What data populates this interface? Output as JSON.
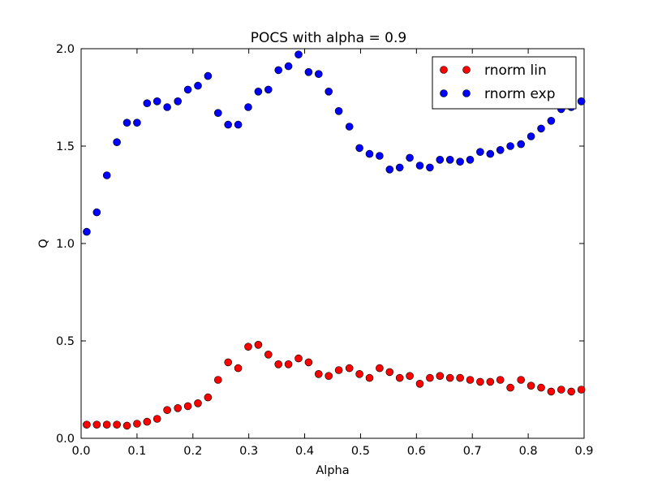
{
  "chart_data": {
    "type": "scatter",
    "title": "POCS with alpha = 0.9",
    "xlabel": "Alpha",
    "ylabel": "Q",
    "xlim": [
      0.0,
      0.9
    ],
    "ylim": [
      0.0,
      2.0
    ],
    "xticks": [
      "0.0",
      "0.1",
      "0.2",
      "0.3",
      "0.4",
      "0.5",
      "0.6",
      "0.7",
      "0.8",
      "0.9"
    ],
    "yticks": [
      "0.0",
      "0.5",
      "1.0",
      "1.5",
      "2.0"
    ],
    "grid": false,
    "legend_position": "top-right",
    "series": [
      {
        "name": "rnorm lin",
        "color": "#ff0000",
        "x": [
          0.01,
          0.028,
          0.046,
          0.064,
          0.082,
          0.1,
          0.118,
          0.136,
          0.154,
          0.173,
          0.191,
          0.209,
          0.227,
          0.245,
          0.263,
          0.281,
          0.299,
          0.317,
          0.335,
          0.353,
          0.371,
          0.389,
          0.407,
          0.425,
          0.443,
          0.461,
          0.48,
          0.498,
          0.516,
          0.534,
          0.552,
          0.57,
          0.588,
          0.606,
          0.624,
          0.642,
          0.66,
          0.678,
          0.696,
          0.714,
          0.732,
          0.75,
          0.768,
          0.787,
          0.805,
          0.823,
          0.841,
          0.859,
          0.877,
          0.895
        ],
        "y": [
          0.07,
          0.07,
          0.07,
          0.07,
          0.065,
          0.075,
          0.085,
          0.1,
          0.145,
          0.155,
          0.165,
          0.18,
          0.21,
          0.3,
          0.39,
          0.36,
          0.47,
          0.48,
          0.43,
          0.38,
          0.38,
          0.41,
          0.39,
          0.33,
          0.32,
          0.35,
          0.36,
          0.33,
          0.31,
          0.36,
          0.34,
          0.31,
          0.32,
          0.28,
          0.31,
          0.32,
          0.31,
          0.31,
          0.3,
          0.29,
          0.29,
          0.3,
          0.26,
          0.3,
          0.27,
          0.26,
          0.24,
          0.25,
          0.24,
          0.25
        ]
      },
      {
        "name": "rnorm exp",
        "color": "#0000ff",
        "x": [
          0.01,
          0.028,
          0.046,
          0.064,
          0.082,
          0.1,
          0.118,
          0.136,
          0.154,
          0.173,
          0.191,
          0.209,
          0.227,
          0.245,
          0.263,
          0.281,
          0.299,
          0.317,
          0.335,
          0.353,
          0.371,
          0.389,
          0.407,
          0.425,
          0.443,
          0.461,
          0.48,
          0.498,
          0.516,
          0.534,
          0.552,
          0.57,
          0.588,
          0.606,
          0.624,
          0.642,
          0.66,
          0.678,
          0.696,
          0.714,
          0.732,
          0.75,
          0.768,
          0.787,
          0.805,
          0.823,
          0.841,
          0.859,
          0.877,
          0.895
        ],
        "y": [
          1.06,
          1.16,
          1.35,
          1.52,
          1.62,
          1.62,
          1.72,
          1.73,
          1.7,
          1.73,
          1.79,
          1.81,
          1.86,
          1.67,
          1.61,
          1.61,
          1.7,
          1.78,
          1.79,
          1.89,
          1.91,
          1.97,
          1.88,
          1.87,
          1.78,
          1.68,
          1.6,
          1.49,
          1.46,
          1.45,
          1.38,
          1.39,
          1.44,
          1.4,
          1.39,
          1.43,
          1.43,
          1.42,
          1.43,
          1.47,
          1.46,
          1.48,
          1.5,
          1.51,
          1.55,
          1.59,
          1.63,
          1.69,
          1.7,
          1.73
        ]
      }
    ]
  }
}
